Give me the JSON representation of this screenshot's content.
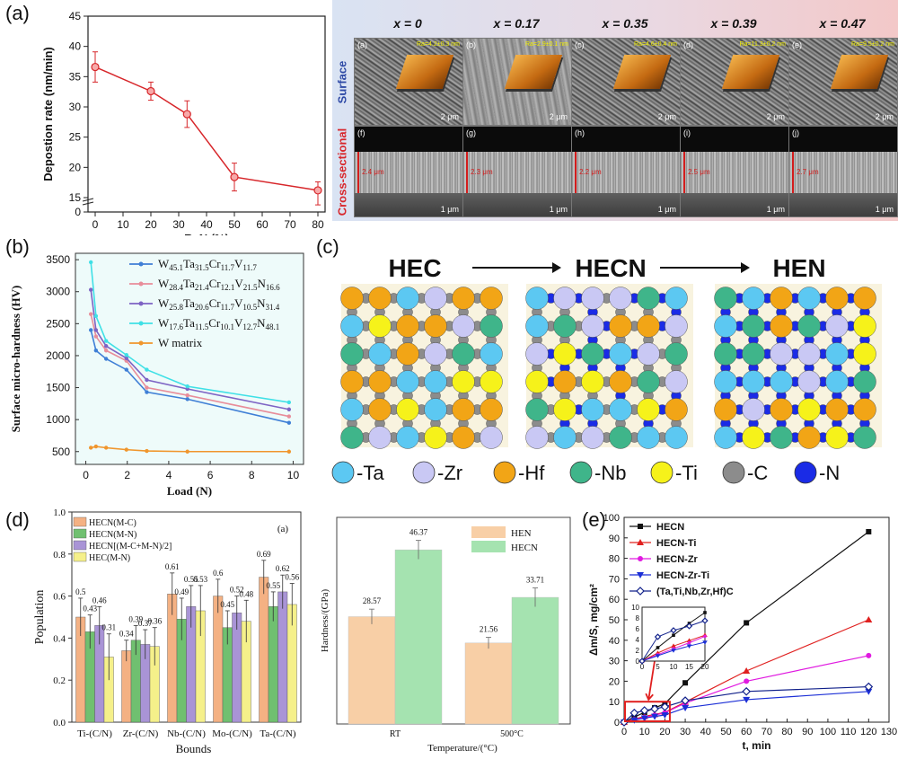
{
  "panels": {
    "a": "(a)",
    "b": "(b)",
    "c": "(c)",
    "d": "(d)",
    "e": "(e)"
  },
  "chart_data": [
    {
      "id": "a-left",
      "type": "line",
      "xlabel": "R_N (%)",
      "ylabel": "Depostion rate (nm/min)",
      "xlim": [
        0,
        80
      ],
      "ylim": [
        0,
        45
      ],
      "xticks": [
        0,
        10,
        20,
        30,
        40,
        50,
        60,
        70,
        80
      ],
      "yticks": [
        0,
        15,
        20,
        25,
        30,
        35,
        40,
        45
      ],
      "x": [
        0,
        20,
        33,
        50,
        80
      ],
      "y": [
        36.6,
        32.6,
        28.8,
        18.4,
        16.2
      ],
      "err": [
        2.5,
        1.5,
        2.2,
        2.3,
        1.4
      ],
      "color": "#d7262a"
    },
    {
      "id": "b",
      "type": "line",
      "xlabel": "Load (N)",
      "ylabel": "Surface micro-hardness (HV)",
      "xlim": [
        0,
        10
      ],
      "ylim": [
        300,
        3600
      ],
      "xticks": [
        0,
        2,
        4,
        6,
        8,
        10
      ],
      "yticks": [
        500,
        1000,
        1500,
        2000,
        2500,
        3000,
        3500
      ],
      "x": [
        0.245,
        0.49,
        0.98,
        1.96,
        2.94,
        4.9,
        9.8
      ],
      "series": [
        {
          "name": "W45.1Ta31.5Cr11.7V11.7",
          "color": "#3f7fd6",
          "values": [
            2400,
            2080,
            1950,
            1780,
            1430,
            1320,
            950
          ]
        },
        {
          "name": "W28.4Ta21.4Cr12.1V21.5N16.6",
          "color": "#e88d9a",
          "values": [
            2650,
            2300,
            2080,
            1920,
            1500,
            1380,
            1050
          ]
        },
        {
          "name": "W25.8Ta20.6Cr11.7V10.5N31.4",
          "color": "#7d63c4",
          "values": [
            3030,
            2400,
            2150,
            1960,
            1620,
            1480,
            1160
          ]
        },
        {
          "name": "W17.6Ta11.5Cr10.1V12.7N48.1",
          "color": "#3fe0e6",
          "values": [
            3460,
            2620,
            2230,
            2010,
            1780,
            1520,
            1270
          ]
        },
        {
          "name": "W matrix",
          "color": "#f0962d",
          "values": [
            560,
            580,
            560,
            530,
            510,
            500,
            500
          ]
        }
      ],
      "legend_parts": [
        {
          "base": "W",
          "sub": "45.1",
          "parts": [
            [
              "Ta",
              "31.5"
            ],
            [
              "Cr",
              "11.7"
            ],
            [
              "V",
              "11.7"
            ]
          ]
        },
        {
          "base": "W",
          "sub": "28.4",
          "parts": [
            [
              "Ta",
              "21.4"
            ],
            [
              "Cr",
              "12.1"
            ],
            [
              "V",
              "21.5"
            ],
            [
              "N",
              "16.6"
            ]
          ]
        },
        {
          "base": "W",
          "sub": "25.8",
          "parts": [
            [
              "Ta",
              "20.6"
            ],
            [
              "Cr",
              "11.7"
            ],
            [
              "V",
              "10.5"
            ],
            [
              "N",
              "31.4"
            ]
          ]
        },
        {
          "base": "W",
          "sub": "17.6",
          "parts": [
            [
              "Ta",
              "11.5"
            ],
            [
              "Cr",
              "10.1"
            ],
            [
              "V",
              "12.7"
            ],
            [
              "N",
              "48.1"
            ]
          ]
        },
        {
          "base": "W matrix",
          "sub": "",
          "parts": []
        }
      ]
    },
    {
      "id": "d-left",
      "type": "bar",
      "xlabel": "Bounds",
      "ylabel": "Population",
      "ylim": [
        0.0,
        1.0
      ],
      "yticks": [
        0.0,
        0.2,
        0.4,
        0.6,
        0.8,
        1.0
      ],
      "categories": [
        "Ti-(C/N)",
        "Zr-(C/N)",
        "Nb-(C/N)",
        "Mo-(C/N)",
        "Ta-(C/N)"
      ],
      "inset_label": "(a)",
      "series": [
        {
          "name": "HECN(M-C)",
          "color": "#f4b183",
          "values": [
            0.5,
            0.34,
            0.61,
            0.6,
            0.69
          ],
          "err": [
            0.09,
            0.05,
            0.1,
            0.08,
            0.08
          ]
        },
        {
          "name": "HECN(M-N)",
          "color": "#70c070",
          "values": [
            0.43,
            0.39,
            0.49,
            0.45,
            0.55
          ],
          "err": [
            0.08,
            0.07,
            0.1,
            0.08,
            0.07
          ]
        },
        {
          "name": "HECN[(M-C+M-N)/2]",
          "color": "#a994d6",
          "values": [
            0.46,
            0.37,
            0.55,
            0.52,
            0.62
          ],
          "err": [
            0.09,
            0.07,
            0.1,
            0.08,
            0.08
          ]
        },
        {
          "name": "HEC(M-N)",
          "color": "#f5f08a",
          "values": [
            0.31,
            0.36,
            0.53,
            0.48,
            0.56
          ],
          "err": [
            0.11,
            0.09,
            0.12,
            0.1,
            0.1
          ]
        }
      ],
      "labels": [
        [
          "0.5",
          "0.43",
          "0.46",
          "0.31"
        ],
        [
          "0.34",
          "0.39",
          "0.37",
          "0.36"
        ],
        [
          "0.61",
          "0.49",
          "0.55",
          "0.53"
        ],
        [
          "0.6",
          "0.45",
          "0.52",
          "0.48"
        ],
        [
          "0.69",
          "0.55",
          "0.62",
          "0.56"
        ]
      ]
    },
    {
      "id": "d-right",
      "type": "bar",
      "xlabel": "Temperature/(°C)",
      "ylabel": "Hardness/(GPa)",
      "ylim": [
        0,
        55
      ],
      "categories": [
        "RT",
        "500°C"
      ],
      "series": [
        {
          "name": "HEN",
          "color": "#f8cfa6",
          "values": [
            28.57,
            21.56
          ],
          "err": [
            2.0,
            1.5
          ]
        },
        {
          "name": "HECN",
          "color": "#a5e3b0",
          "values": [
            46.37,
            33.71
          ],
          "err": [
            2.5,
            2.5
          ]
        }
      ]
    },
    {
      "id": "e",
      "type": "line",
      "xlabel": "t, min",
      "ylabel": "Δm/S, mg/cm²",
      "xlim": [
        0,
        130
      ],
      "ylim": [
        0,
        100
      ],
      "xticks": [
        0,
        10,
        20,
        30,
        40,
        50,
        60,
        70,
        80,
        90,
        100,
        110,
        120,
        130
      ],
      "yticks": [
        0,
        10,
        20,
        30,
        40,
        50,
        60,
        70,
        80,
        90,
        100
      ],
      "x": [
        0,
        5,
        10,
        15,
        20,
        30,
        60,
        120
      ],
      "series": [
        {
          "name": "HECN",
          "color": "#111111",
          "marker": "square",
          "values": [
            0,
            2.5,
            4.8,
            7.0,
            9.0,
            19.2,
            48.5,
            93.0
          ]
        },
        {
          "name": "HECN-Ti",
          "color": "#e0201f",
          "marker": "triangle",
          "values": [
            0,
            1.5,
            2.8,
            3.8,
            4.8,
            9.8,
            25.0,
            50.0
          ]
        },
        {
          "name": "HECN-Zr",
          "color": "#e01ae0",
          "marker": "circle",
          "values": [
            0,
            1.2,
            2.3,
            3.4,
            4.6,
            9.3,
            20.0,
            32.5
          ]
        },
        {
          "name": "HECN-Zr-Ti",
          "color": "#1c2fd6",
          "marker": "tri-down",
          "values": [
            0,
            1.0,
            2.0,
            2.8,
            3.5,
            7.0,
            11.0,
            15.0
          ]
        },
        {
          "name": "(Ta,Ti,Nb,Zr,Hf)C",
          "color": "#10208a",
          "marker": "diamond",
          "values": [
            0,
            4.5,
            5.7,
            6.5,
            7.5,
            10.5,
            15.0,
            17.3
          ]
        }
      ],
      "inset": {
        "xlim": [
          0,
          20
        ],
        "ylim": [
          0,
          10
        ],
        "xticks": [
          0,
          5,
          10,
          15,
          20
        ],
        "yticks": [
          0,
          2,
          4,
          6,
          8,
          10
        ]
      }
    }
  ],
  "panel_a_right": {
    "headers": [
      "x = 0",
      "x = 0.17",
      "x = 0.35",
      "x = 0.39",
      "x = 0.47"
    ],
    "row_labels": [
      "Surface",
      "Cross-sectional"
    ],
    "surface_labels": [
      "(a)",
      "(b)",
      "(c)",
      "(d)",
      "(e)"
    ],
    "cross_labels": [
      "(f)",
      "(g)",
      "(h)",
      "(i)",
      "(j)"
    ],
    "ra_values": [
      "Ra=4.2±0.3 nm",
      "Ra=2.9±0.1 nm",
      "Ra=4.6±0.4 nm",
      "Ra=11.3±0.2 nm",
      "Ra=9.5±0.2 nm"
    ],
    "scale_bar": "2 μm",
    "scale_bar_cross": "1 μm",
    "thickness": [
      "2.4 μm",
      "2.3 μm",
      "2.2 μm",
      "2.5 μm",
      "2.7 μm"
    ]
  },
  "panel_c": {
    "titles": [
      "HEC",
      "HECN",
      "HEN"
    ],
    "legend": [
      {
        "label": "-Ta",
        "color": "#5cc8f2"
      },
      {
        "label": "-Zr",
        "color": "#c9c8f4"
      },
      {
        "label": "-Hf",
        "color": "#f2a516"
      },
      {
        "label": "-Nb",
        "color": "#3fb58a"
      },
      {
        "label": "-Ti",
        "color": "#f6f21a"
      },
      {
        "label": "-C",
        "color": "#8c8c8c"
      },
      {
        "label": "-N",
        "color": "#1a2be6"
      }
    ]
  }
}
